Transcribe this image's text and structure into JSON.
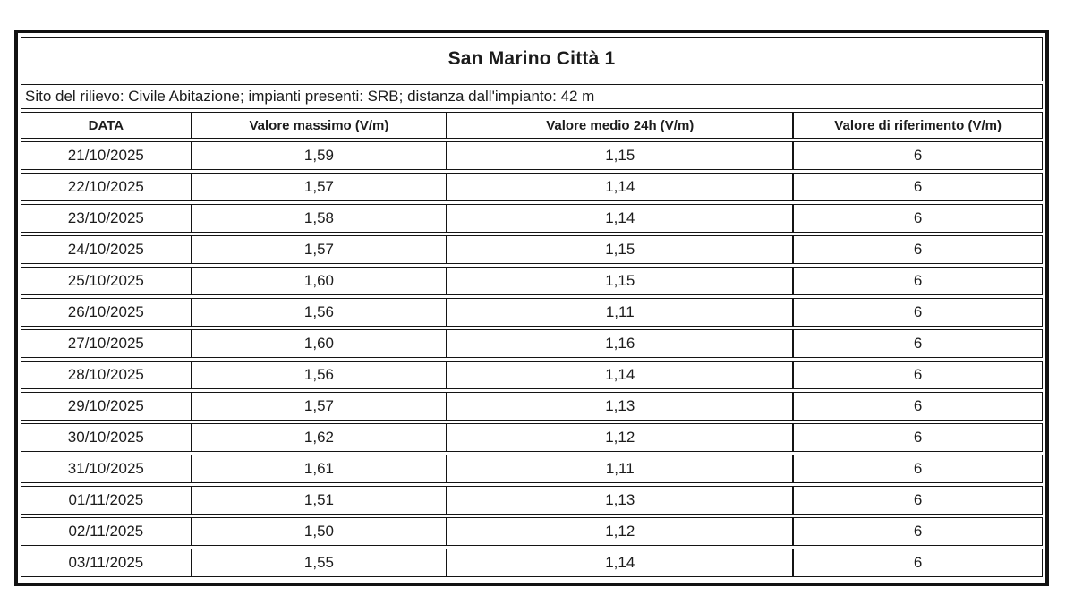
{
  "report": {
    "title": "San Marino Città 1",
    "site_info": "Sito del rilievo: Civile Abitazione; impianti presenti: SRB; distanza dall'impianto: 42 m",
    "columns": [
      "DATA",
      "Valore massimo (V/m)",
      "Valore medio 24h (V/m)",
      "Valore di riferimento (V/m)"
    ],
    "rows": [
      [
        "21/10/2025",
        "1,59",
        "1,15",
        "6"
      ],
      [
        "22/10/2025",
        "1,57",
        "1,14",
        "6"
      ],
      [
        "23/10/2025",
        "1,58",
        "1,14",
        "6"
      ],
      [
        "24/10/2025",
        "1,57",
        "1,15",
        "6"
      ],
      [
        "25/10/2025",
        "1,60",
        "1,15",
        "6"
      ],
      [
        "26/10/2025",
        "1,56",
        "1,11",
        "6"
      ],
      [
        "27/10/2025",
        "1,60",
        "1,16",
        "6"
      ],
      [
        "28/10/2025",
        "1,56",
        "1,14",
        "6"
      ],
      [
        "29/10/2025",
        "1,57",
        "1,13",
        "6"
      ],
      [
        "30/10/2025",
        "1,62",
        "1,12",
        "6"
      ],
      [
        "31/10/2025",
        "1,61",
        "1,11",
        "6"
      ],
      [
        "01/11/2025",
        "1,51",
        "1,13",
        "6"
      ],
      [
        "02/11/2025",
        "1,50",
        "1,12",
        "6"
      ],
      [
        "03/11/2025",
        "1,55",
        "1,14",
        "6"
      ]
    ],
    "colors": {
      "border": "#121212",
      "text": "#1c1c1c",
      "background": "#ffffff"
    }
  }
}
